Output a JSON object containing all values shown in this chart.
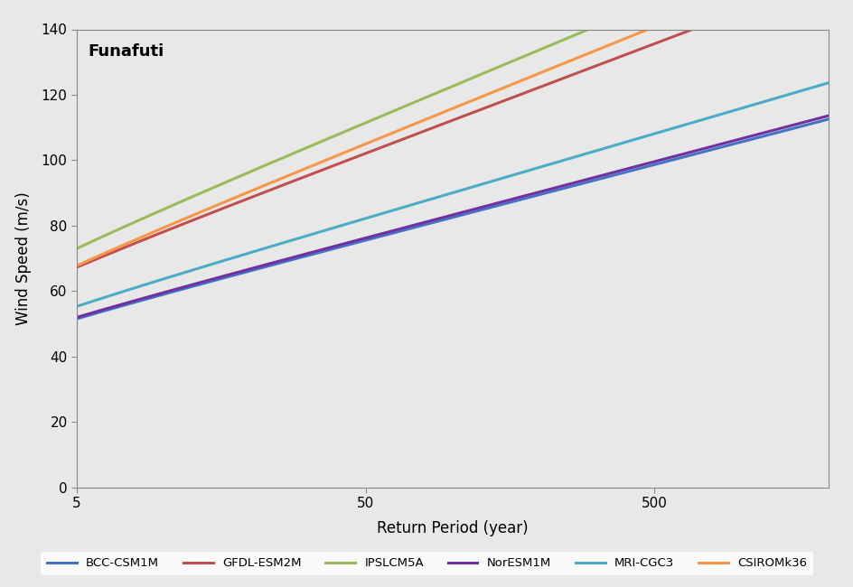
{
  "title": "Funafuti",
  "xlabel": "Return Period (year)",
  "ylabel": "Wind Speed (m/s)",
  "xlim": [
    5,
    2000
  ],
  "ylim": [
    0,
    140
  ],
  "yticks": [
    0,
    20,
    40,
    60,
    80,
    100,
    120,
    140
  ],
  "xticks": [
    5,
    50,
    500
  ],
  "xtick_labels": [
    "5",
    "50",
    "500"
  ],
  "plot_bg_color": "#e8e8e8",
  "fig_bg_color": "#e8e8e8",
  "legend_bg_color": "#ffffff",
  "models": [
    {
      "name": "BCC-CSM1M",
      "color": "#4472c4",
      "mu": 36.5,
      "sigma": 10.0
    },
    {
      "name": "GFDL-ESM2M",
      "color": "#c0504d",
      "mu": 45.5,
      "sigma": 14.5
    },
    {
      "name": "IPSLCM5A",
      "color": "#9bbb59",
      "mu": 49.0,
      "sigma": 16.0
    },
    {
      "name": "NorESM1M",
      "color": "#7030a0",
      "mu": 36.8,
      "sigma": 10.1
    },
    {
      "name": "MRI-CGC3",
      "color": "#4bacc6",
      "mu": 38.5,
      "sigma": 11.2
    },
    {
      "name": "CSIROMk36",
      "color": "#f79646",
      "mu": 44.5,
      "sigma": 15.5
    }
  ]
}
